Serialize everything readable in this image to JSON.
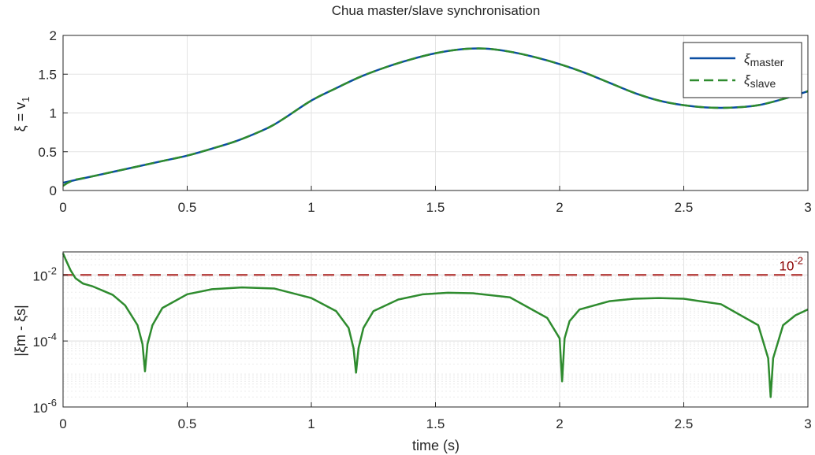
{
  "chart_data": [
    {
      "type": "line",
      "title": "Chua master/slave synchronisation",
      "xlabel": "",
      "ylabel": {
        "main": "ξ = v",
        "sub": "1"
      },
      "xlim": [
        0,
        3
      ],
      "ylim": [
        0,
        2
      ],
      "xticks": [
        0,
        0.5,
        1,
        1.5,
        2,
        2.5,
        3
      ],
      "xtick_labels": [
        "0",
        "0.5",
        "1",
        "1.5",
        "2",
        "2.5",
        "3"
      ],
      "yticks": [
        0,
        0.5,
        1,
        1.5,
        2
      ],
      "ytick_labels": [
        "0",
        "0.5",
        "1",
        "1.5",
        "2"
      ],
      "grid": true,
      "legend_position": "top-right",
      "series": [
        {
          "name": {
            "main": "ξ",
            "sub": "master"
          },
          "style": "solid",
          "color": "#0b4ea2",
          "x": [
            0,
            0.1,
            0.2,
            0.3,
            0.4,
            0.5,
            0.6,
            0.7,
            0.8,
            0.85,
            0.9,
            1.0,
            1.1,
            1.2,
            1.3,
            1.4,
            1.5,
            1.6,
            1.7,
            1.8,
            1.9,
            2.0,
            2.1,
            2.2,
            2.3,
            2.4,
            2.5,
            2.6,
            2.7,
            2.8,
            2.9,
            3.0
          ],
          "y": [
            0.1,
            0.17,
            0.24,
            0.31,
            0.38,
            0.45,
            0.54,
            0.64,
            0.77,
            0.85,
            0.95,
            1.16,
            1.32,
            1.47,
            1.59,
            1.69,
            1.77,
            1.82,
            1.83,
            1.79,
            1.72,
            1.63,
            1.52,
            1.39,
            1.26,
            1.16,
            1.1,
            1.07,
            1.07,
            1.1,
            1.18,
            1.28
          ]
        },
        {
          "name": {
            "main": "ξ",
            "sub": "slave"
          },
          "style": "dashed",
          "color": "#2e8b2e",
          "x": [
            0,
            0.02,
            0.05,
            0.1,
            0.2,
            0.3,
            0.4,
            0.5,
            0.6,
            0.7,
            0.8,
            0.85,
            0.9,
            1.0,
            1.1,
            1.2,
            1.3,
            1.4,
            1.5,
            1.6,
            1.7,
            1.8,
            1.9,
            2.0,
            2.1,
            2.2,
            2.3,
            2.4,
            2.5,
            2.6,
            2.7,
            2.8,
            2.9,
            3.0
          ],
          "y": [
            0.06,
            0.1,
            0.14,
            0.17,
            0.24,
            0.31,
            0.38,
            0.45,
            0.54,
            0.64,
            0.77,
            0.85,
            0.95,
            1.16,
            1.32,
            1.47,
            1.59,
            1.69,
            1.77,
            1.82,
            1.83,
            1.79,
            1.72,
            1.63,
            1.52,
            1.39,
            1.26,
            1.16,
            1.1,
            1.07,
            1.07,
            1.1,
            1.18,
            1.28
          ]
        }
      ]
    },
    {
      "type": "line",
      "title": "",
      "xlabel": "time (s)",
      "ylabel": "|ξm - ξs|",
      "yscale": "log",
      "xlim": [
        0,
        3
      ],
      "ylim": [
        1e-06,
        0.05
      ],
      "xticks": [
        0,
        0.5,
        1,
        1.5,
        2,
        2.5,
        3
      ],
      "xtick_labels": [
        "0",
        "0.5",
        "1",
        "1.5",
        "2",
        "2.5",
        "3"
      ],
      "yticks": [
        1e-06,
        0.0001,
        0.01
      ],
      "ytick_labels": [
        {
          "base": "10",
          "exp": "-6"
        },
        {
          "base": "10",
          "exp": "-4"
        },
        {
          "base": "10",
          "exp": "-2"
        }
      ],
      "grid": true,
      "series": [
        {
          "name": "",
          "style": "solid",
          "color": "#2e8b2e",
          "x": [
            0,
            0.01,
            0.03,
            0.05,
            0.08,
            0.12,
            0.2,
            0.25,
            0.3,
            0.32,
            0.33,
            0.34,
            0.36,
            0.4,
            0.5,
            0.6,
            0.72,
            0.85,
            1.0,
            1.1,
            1.15,
            1.17,
            1.18,
            1.19,
            1.21,
            1.25,
            1.35,
            1.45,
            1.55,
            1.65,
            1.8,
            1.95,
            2.0,
            2.01,
            2.02,
            2.04,
            2.08,
            2.2,
            2.3,
            2.4,
            2.5,
            2.65,
            2.8,
            2.84,
            2.85,
            2.86,
            2.9,
            2.95,
            3.0
          ],
          "y": [
            0.045,
            0.03,
            0.014,
            0.008,
            0.0055,
            0.0045,
            0.0025,
            0.0012,
            0.0003,
            8e-05,
            1.2e-05,
            8e-05,
            0.0003,
            0.001,
            0.0026,
            0.0037,
            0.0042,
            0.0039,
            0.002,
            0.0008,
            0.00025,
            6e-05,
            1.1e-05,
            6e-05,
            0.00025,
            0.0008,
            0.0018,
            0.0026,
            0.0029,
            0.0028,
            0.0021,
            0.0005,
            0.00012,
            6e-06,
            0.00012,
            0.0004,
            0.0009,
            0.0016,
            0.0019,
            0.002,
            0.0019,
            0.0013,
            0.0003,
            3e-05,
            2e-06,
            3e-05,
            0.0003,
            0.0006,
            0.0009
          ]
        }
      ],
      "reference_line": {
        "y": 0.01,
        "style": "dashed",
        "color": "#b94a48",
        "label": {
          "base": "10",
          "exp": "-2"
        },
        "label_color": "#8b0000"
      }
    }
  ]
}
